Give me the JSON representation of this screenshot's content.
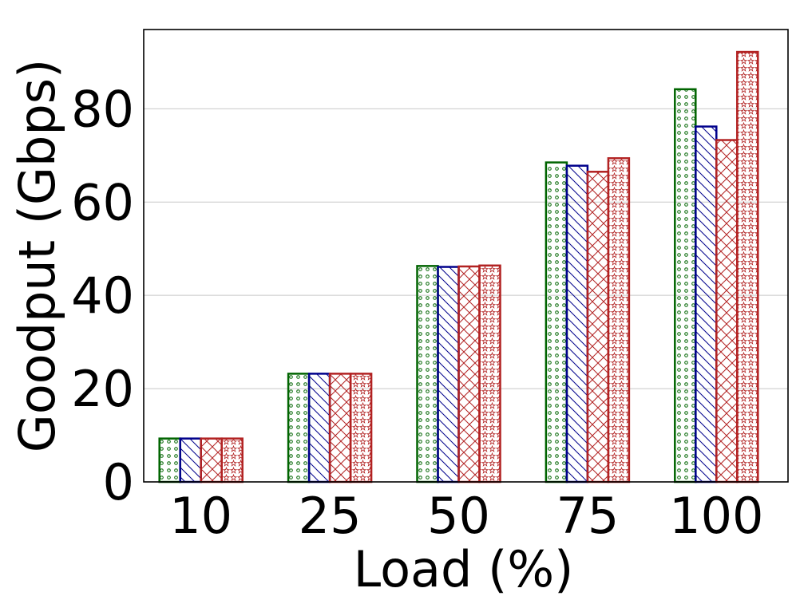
{
  "chart_data": {
    "type": "bar",
    "xlabel": "Load (%)",
    "ylabel": "Goodput (Gbps)",
    "categories": [
      "10",
      "25",
      "50",
      "75",
      "100"
    ],
    "ylim": [
      0,
      97
    ],
    "yticks": [
      0,
      20,
      40,
      60,
      80
    ],
    "grid": "horizontal",
    "legend": "none",
    "series": [
      {
        "values": [
          9.3,
          23.2,
          46.3,
          68.5,
          84.2
        ],
        "color": "#006400",
        "hatch": "circles"
      },
      {
        "values": [
          9.3,
          23.2,
          46.1,
          67.8,
          76.2
        ],
        "color": "#00008b",
        "hatch": "diagonal"
      },
      {
        "values": [
          9.3,
          23.2,
          46.2,
          66.5,
          73.3
        ],
        "color": "#b22222",
        "hatch": "crosshatch"
      },
      {
        "values": [
          9.3,
          23.2,
          46.4,
          69.4,
          92.2
        ],
        "color": "#b22222",
        "hatch": "stars"
      }
    ]
  }
}
